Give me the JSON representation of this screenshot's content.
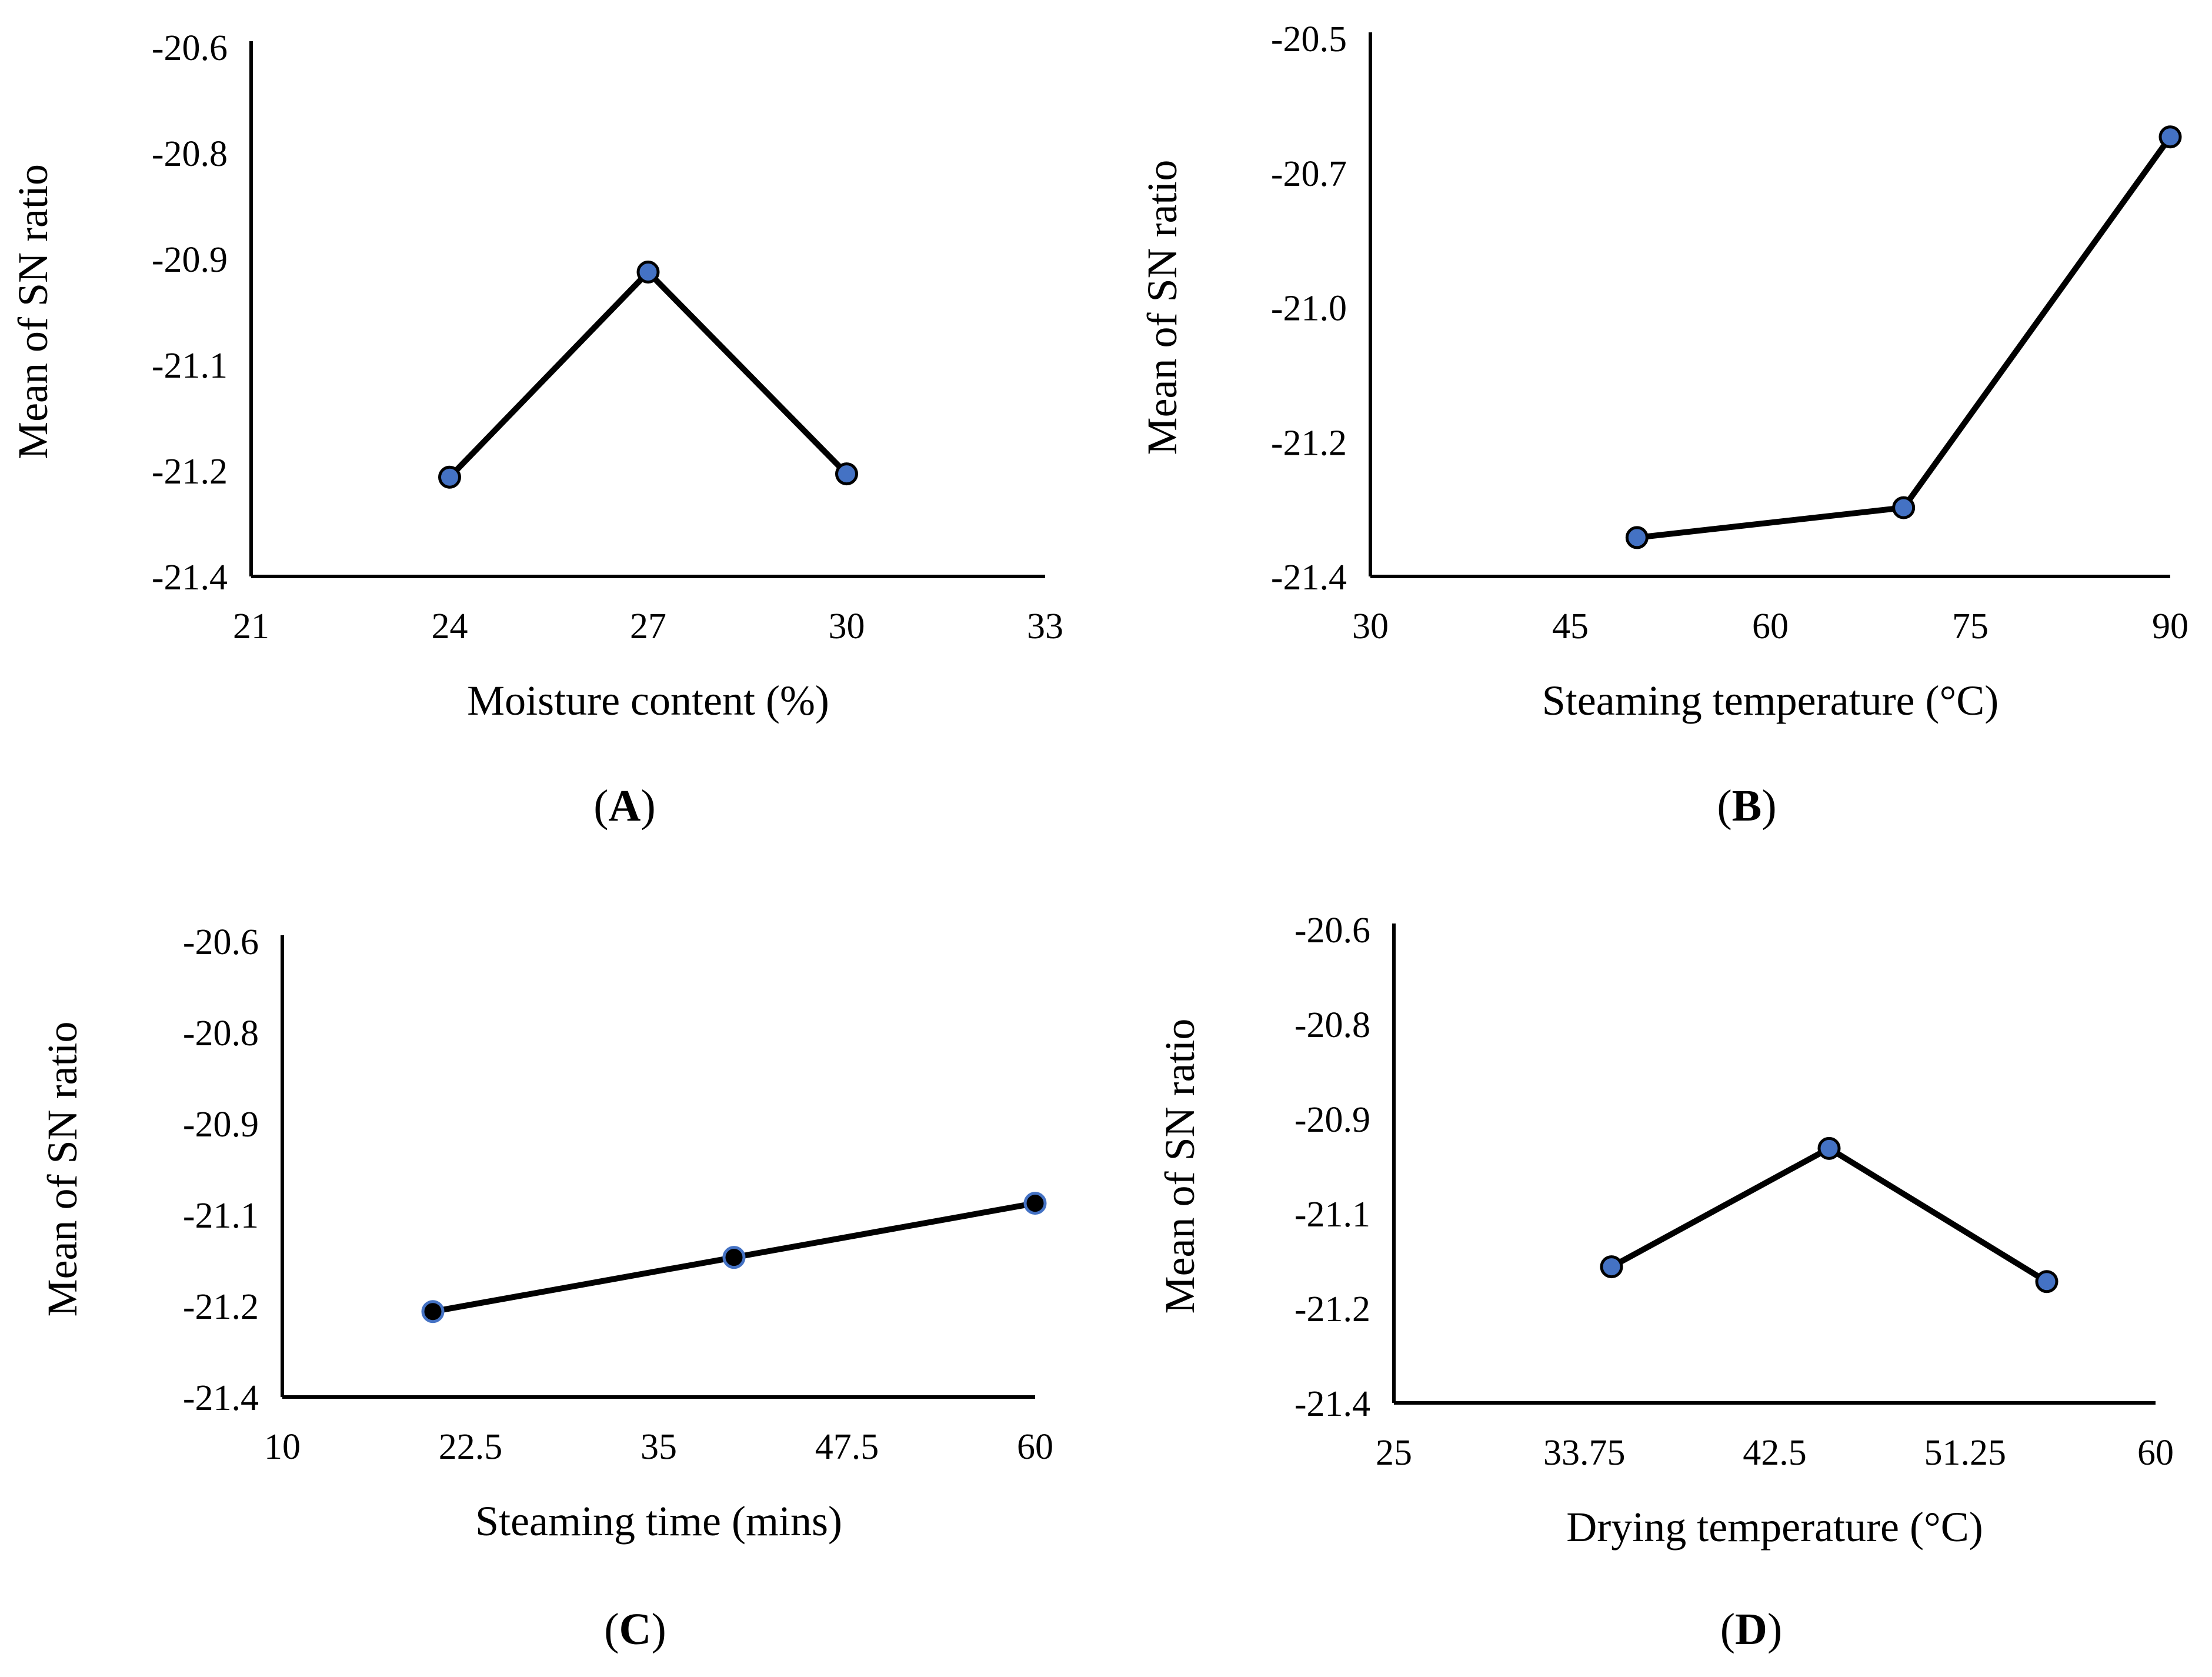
{
  "chart_data": [
    {
      "type": "line",
      "panel_label": "A",
      "xlabel": "Moisture content (%)",
      "ylabel": "Mean of SN ratio",
      "x_ticks": [
        "21",
        "24",
        "27",
        "30",
        "33"
      ],
      "y_ticks": [
        "-20.6",
        "-20.8",
        "-20.9",
        "-21.1",
        "-21.2",
        "-21.4"
      ],
      "xlim": [
        21,
        33
      ],
      "ylim": [
        -21.4,
        -20.6
      ],
      "grid": false,
      "marker_color": "#4472C4",
      "marker_edge": "#000000",
      "series": [
        {
          "x": [
            24,
            27,
            30
          ],
          "y": [
            -21.25,
            -20.94,
            -21.245
          ]
        }
      ]
    },
    {
      "type": "line",
      "panel_label": "B",
      "xlabel": "Steaming temperature (°C)",
      "ylabel": "Mean of SN ratio",
      "x_ticks": [
        "30",
        "45",
        "60",
        "75",
        "90"
      ],
      "y_ticks": [
        "-20.5",
        "-20.7",
        "-21.0",
        "-21.2",
        "-21.4"
      ],
      "xlim": [
        30,
        90
      ],
      "ylim": [
        -21.4,
        -20.5
      ],
      "grid": false,
      "marker_color": "#4472C4",
      "marker_edge": "#000000",
      "series": [
        {
          "x": [
            50,
            70,
            90
          ],
          "y": [
            -21.335,
            -21.285,
            -20.665
          ]
        }
      ]
    },
    {
      "type": "line",
      "panel_label": "C",
      "xlabel": "Steaming time (mins)",
      "ylabel": "Mean of SN ratio",
      "x_ticks": [
        "10",
        "22.5",
        "35",
        "47.5",
        "60"
      ],
      "y_ticks": [
        "-20.6",
        "-20.8",
        "-20.9",
        "-21.1",
        "-21.2",
        "-21.4"
      ],
      "xlim": [
        10,
        60
      ],
      "ylim": [
        -21.4,
        -20.6
      ],
      "grid": false,
      "marker_color": "#000000",
      "marker_edge": "#4472C4",
      "series": [
        {
          "x": [
            20,
            40,
            60
          ],
          "y": [
            -21.25,
            -21.155,
            -21.06
          ]
        }
      ]
    },
    {
      "type": "line",
      "panel_label": "D",
      "xlabel": "Drying temperature (°C)",
      "ylabel": "Mean of SN ratio",
      "x_ticks": [
        "25",
        "33.75",
        "42.5",
        "51.25",
        "60"
      ],
      "y_ticks": [
        "-20.6",
        "-20.8",
        "-20.9",
        "-21.1",
        "-21.2",
        "-21.4"
      ],
      "xlim": [
        25,
        60
      ],
      "ylim": [
        -21.4,
        -20.6
      ],
      "grid": false,
      "marker_color": "#4472C4",
      "marker_edge": "#000000",
      "series": [
        {
          "x": [
            35,
            45,
            55
          ],
          "y": [
            -21.17,
            -20.97,
            -21.195
          ]
        }
      ]
    }
  ]
}
